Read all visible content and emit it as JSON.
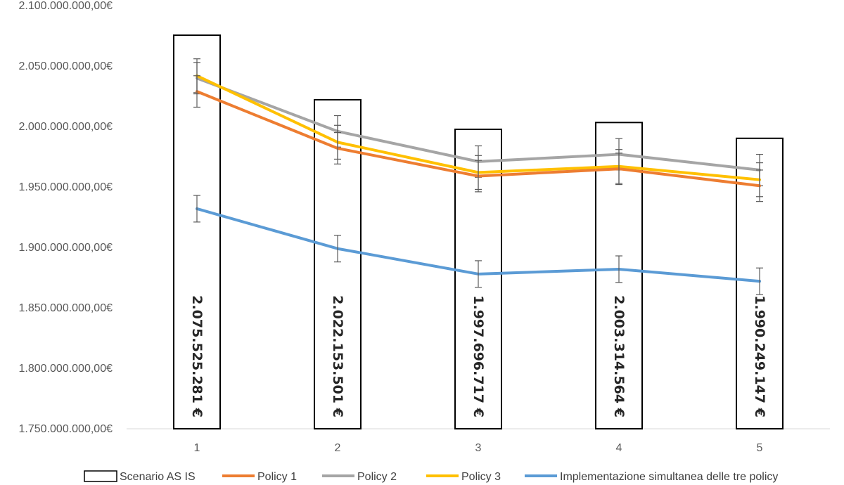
{
  "chart_data": {
    "type": "bar+line",
    "title": "",
    "xlabel": "",
    "ylabel": "",
    "categories": [
      "1",
      "2",
      "3",
      "4",
      "5"
    ],
    "ylim": [
      1750000000,
      2100000000
    ],
    "yticks": [
      {
        "value": 1750000000,
        "label": "1.750.000.000,00€"
      },
      {
        "value": 1800000000,
        "label": "1.800.000.000,00€"
      },
      {
        "value": 1850000000,
        "label": "1.850.000.000,00€"
      },
      {
        "value": 1900000000,
        "label": "1.900.000.000,00€"
      },
      {
        "value": 1950000000,
        "label": "1.950.000.000,00€"
      },
      {
        "value": 2000000000,
        "label": "2.000.000.000,00€"
      },
      {
        "value": 2050000000,
        "label": "2.050.000.000,00€"
      },
      {
        "value": 2100000000,
        "label": "2.100.000.000,00€"
      }
    ],
    "bar_series": {
      "name": "Scenario AS IS",
      "color": "#000000",
      "values": [
        2075525281,
        2022153501,
        1997696717,
        2003314564,
        1990249147
      ],
      "labels": [
        "2.075.525.281 €",
        "2.022.153.501 €",
        "1.997.696.717 €",
        "2.003.314.564 €",
        "1.990.249.147 €"
      ]
    },
    "line_series": [
      {
        "name": "Policy 2",
        "color": "#A5A5A5",
        "values": [
          2040000000,
          1996000000,
          1971000000,
          1977000000,
          1964000000
        ],
        "error": 13000000
      },
      {
        "name": "Policy 3",
        "color": "#FFC000",
        "values": [
          2042000000,
          1987000000,
          1962000000,
          1967000000,
          1956000000
        ],
        "error": 14000000
      },
      {
        "name": "Policy 1",
        "color": "#ED7D31",
        "values": [
          2029000000,
          1982000000,
          1959000000,
          1965000000,
          1951000000
        ],
        "error": 13000000
      },
      {
        "name": "Implementazione simultanea delle tre policy",
        "color": "#5B9BD5",
        "values": [
          1932000000,
          1899000000,
          1878000000,
          1882000000,
          1872000000
        ],
        "error": 11000000
      }
    ],
    "legend": {
      "position": "bottom",
      "items": [
        {
          "label": "Scenario AS IS",
          "kind": "box",
          "color": "#000000"
        },
        {
          "label": "Policy 1",
          "kind": "line",
          "color": "#ED7D31"
        },
        {
          "label": "Policy 2",
          "kind": "line",
          "color": "#A5A5A5"
        },
        {
          "label": "Policy 3",
          "kind": "line",
          "color": "#FFC000"
        },
        {
          "label": "Implementazione simultanea delle tre policy",
          "kind": "line",
          "color": "#5B9BD5"
        }
      ]
    }
  }
}
